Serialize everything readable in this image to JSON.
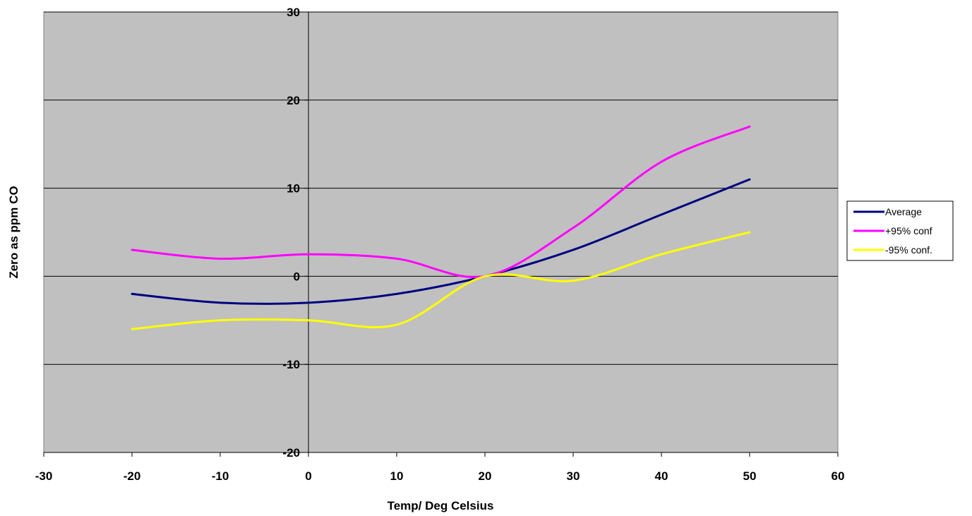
{
  "chart_data": {
    "type": "line",
    "title": "",
    "xlabel": "Temp/ Deg Celsius",
    "ylabel": "Zero as ppm CO",
    "xlim": [
      -30,
      60
    ],
    "ylim": [
      -20,
      30
    ],
    "x_ticks": [
      -30,
      -20,
      -10,
      0,
      10,
      20,
      30,
      40,
      50,
      60
    ],
    "y_ticks": [
      -20,
      -10,
      0,
      10,
      20,
      30
    ],
    "x_tick_labels": [
      "-30",
      "-20",
      "-10",
      "0",
      "10",
      "20",
      "30",
      "40",
      "50",
      "60"
    ],
    "y_tick_labels": [
      "-20",
      "-10",
      "0",
      "10",
      "20",
      "30"
    ],
    "grid": "horizontal",
    "plot_background": "#c0c0c0",
    "legend_position": "right",
    "series": [
      {
        "name": "Average",
        "color": "#000080",
        "x": [
          -20,
          -10,
          0,
          10,
          20,
          30,
          40,
          50
        ],
        "y": [
          -2,
          -3,
          -3,
          -2,
          0,
          3,
          7,
          11
        ]
      },
      {
        "name": "+95% conf",
        "color": "#ff00ff",
        "x": [
          -20,
          -10,
          0,
          10,
          20,
          30,
          40,
          50
        ],
        "y": [
          3,
          2,
          2.5,
          2,
          0,
          5.5,
          13,
          17
        ]
      },
      {
        "name": "-95% conf.",
        "color": "#ffff00",
        "x": [
          -20,
          -10,
          0,
          10,
          20,
          30,
          40,
          50
        ],
        "y": [
          -6,
          -5,
          -5,
          -5.5,
          0,
          -0.5,
          2.5,
          5
        ]
      }
    ]
  }
}
